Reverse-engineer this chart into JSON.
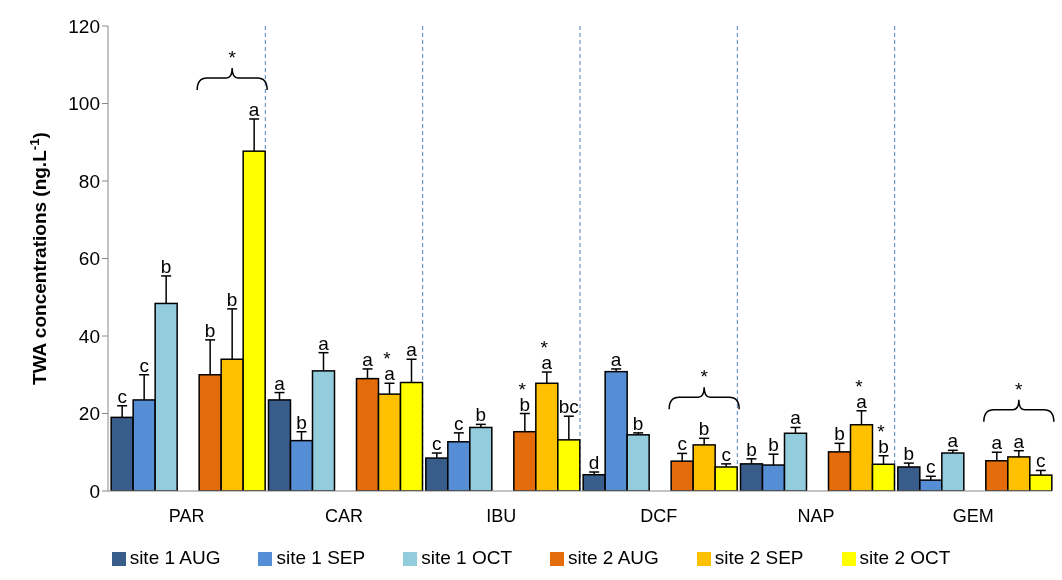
{
  "chart_data": {
    "type": "bar",
    "ylabel": "TWA concentrations (ng.L$^{-1}$)",
    "categories": [
      "PAR",
      "CAR",
      "IBU",
      "DCF",
      "NAP",
      "GEM"
    ],
    "series": [
      {
        "name": "site 1 AUG",
        "color": "#385d8a",
        "values": [
          19,
          23.5,
          8.5,
          4.2,
          7,
          6.2
        ],
        "errors": [
          [
            19,
            22
          ],
          [
            23.5,
            25.4
          ],
          [
            8.5,
            9.8
          ],
          [
            4.2,
            4.9
          ],
          [
            7,
            8.3
          ],
          [
            6.2,
            7.2
          ]
        ],
        "value_labels": [
          "c",
          "a",
          "c",
          "d",
          "b",
          "b"
        ]
      },
      {
        "name": "site 1 SEP",
        "color": "#558ed5",
        "values": [
          23.5,
          13,
          12.7,
          30.8,
          6.7,
          2.8
        ],
        "errors": [
          [
            23.5,
            30
          ],
          [
            13,
            15.3
          ],
          [
            12.7,
            15
          ],
          [
            30.8,
            31.5
          ],
          [
            6.7,
            9.5
          ],
          [
            2.8,
            3.8
          ]
        ],
        "value_labels": [
          "c",
          "b",
          "c",
          "a",
          "b",
          "c"
        ]
      },
      {
        "name": "site 1 OCT",
        "color": "#93cddd",
        "values": [
          48.4,
          31,
          16.4,
          14.5,
          14.9,
          9.8
        ],
        "errors": [
          [
            48.4,
            55.5
          ],
          [
            31,
            35.7
          ],
          [
            16.4,
            17.2
          ],
          [
            14.5,
            15
          ],
          [
            14.9,
            16.4
          ],
          [
            9.8,
            10.5
          ]
        ],
        "value_labels": [
          "b",
          "a",
          "b",
          "b",
          "a",
          "a"
        ]
      },
      {
        "name": "site 2 AUG",
        "color": "#e46c0a",
        "values": [
          30,
          29,
          15.3,
          7.7,
          10.1,
          7.8
        ],
        "errors": [
          [
            30,
            39
          ],
          [
            29,
            31.5
          ],
          [
            15.3,
            20
          ],
          [
            7.7,
            9.7
          ],
          [
            10.1,
            12.3
          ],
          [
            7.8,
            10
          ]
        ],
        "value_labels": [
          "b",
          "a",
          "*\nb",
          "c",
          "b",
          "a"
        ]
      },
      {
        "name": "site 2 SEP",
        "color": "#ffc000",
        "values": [
          34,
          25,
          27.8,
          11.9,
          17.1,
          8.8
        ],
        "errors": [
          [
            34,
            47
          ],
          [
            25,
            27.8
          ],
          [
            27.8,
            30.7
          ],
          [
            11.9,
            13.6
          ],
          [
            17.1,
            20.7
          ],
          [
            8.8,
            10.4
          ]
        ],
        "value_labels": [
          "b",
          "*\na",
          "*\na",
          "b",
          "*\na",
          "a"
        ]
      },
      {
        "name": "site 2 OCT",
        "color": "#ffff00",
        "values": [
          87.7,
          28,
          13.2,
          6.2,
          6.9,
          4.1
        ],
        "errors": [
          [
            87.7,
            96
          ],
          [
            28,
            34
          ],
          [
            13.2,
            19.3
          ],
          [
            6.2,
            7
          ],
          [
            6.9,
            9.1
          ],
          [
            4.1,
            5.3
          ]
        ],
        "value_labels": [
          "a",
          "a",
          "bc",
          "c",
          "*\nb",
          "c"
        ]
      }
    ],
    "ylim": [
      0,
      120
    ],
    "yticks": [
      0,
      20,
      40,
      60,
      80,
      100,
      120
    ],
    "grid": "x",
    "legend": "bottom",
    "annotations": [
      "*",
      "*",
      "*"
    ]
  }
}
